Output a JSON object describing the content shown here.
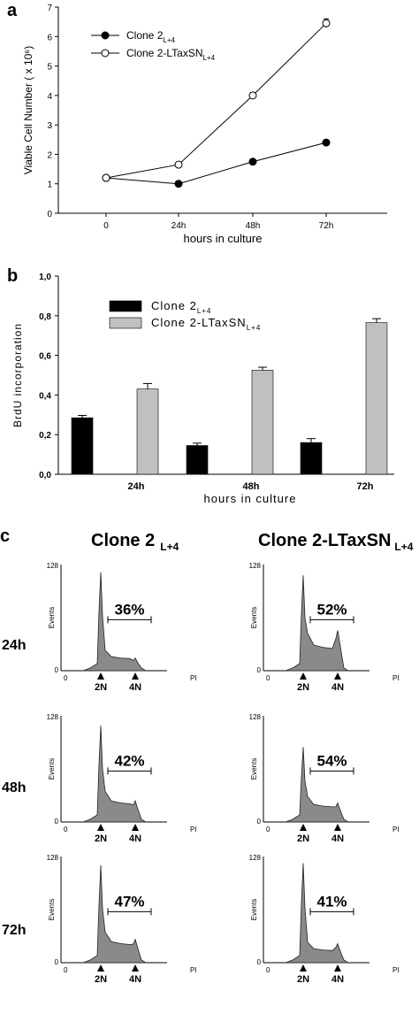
{
  "panel_a": {
    "letter": "a",
    "chart_data": {
      "type": "line",
      "x": [
        "0",
        "24h",
        "48h",
        "72h"
      ],
      "series": [
        {
          "name": "Clone 2",
          "subscript": "L+4",
          "values": [
            1.2,
            1.0,
            1.75,
            2.4
          ],
          "marker": "filled",
          "color": "#000000"
        },
        {
          "name": "Clone 2-LTaxSN",
          "subscript": "L+4",
          "values": [
            1.2,
            1.65,
            4.0,
            6.45
          ],
          "marker": "open",
          "color": "#000000"
        }
      ],
      "error_bars": [
        [
          0,
          0,
          0,
          0
        ],
        [
          0,
          0.05,
          0.1,
          0.15
        ]
      ],
      "xlabel": "hours in culture",
      "ylabel": "Viable Cell Number ( x 10⁶)",
      "ylim": [
        0,
        7
      ],
      "yticks": [
        "0",
        "1",
        "2",
        "3",
        "4",
        "5",
        "6",
        "7"
      ],
      "legend_position": "top-left",
      "grid": false
    }
  },
  "panel_b": {
    "letter": "b",
    "chart_data": {
      "type": "bar",
      "categories": [
        "24h",
        "48h",
        "72h"
      ],
      "series": [
        {
          "name": "Clone 2",
          "subscript": "L+4",
          "values": [
            0.285,
            0.145,
            0.16
          ],
          "errors": [
            0.012,
            0.012,
            0.02
          ],
          "color": "#000000"
        },
        {
          "name": "Clone 2-LTaxSN",
          "subscript": "L+4",
          "values": [
            0.43,
            0.525,
            0.765
          ],
          "errors": [
            0.028,
            0.015,
            0.02
          ],
          "color": "#c0c0c0"
        }
      ],
      "xlabel": "hours in culture",
      "ylabel": "BrdU incorporation",
      "ylim": [
        0,
        1.0
      ],
      "yticks": [
        "0,0",
        "0,2",
        "0,4",
        "0,6",
        "0,8",
        "1,0"
      ],
      "legend_position": "top-left",
      "grid": false
    }
  },
  "panel_c": {
    "letter": "c",
    "columns": [
      {
        "title": "Clone 2",
        "subscript": "L+4"
      },
      {
        "title": "Clone 2-LTaxSN",
        "subscript": "L+4"
      }
    ],
    "rows": [
      "24h",
      "48h",
      "72h"
    ],
    "ymax_label": "128",
    "yaxis_label": "Events",
    "zero_label": "0",
    "xaxis_label": "PI",
    "peak_labels": [
      "2N",
      "4N"
    ],
    "histograms": [
      [
        {
          "percent": "36%",
          "peak2n": 0.96,
          "plateau": 0.12,
          "peak4n": 0.12
        },
        {
          "percent": "52%",
          "peak2n": 0.93,
          "plateau": 0.22,
          "peak4n": 0.38
        }
      ],
      [
        {
          "percent": "42%",
          "peak2n": 0.94,
          "plateau": 0.18,
          "peak4n": 0.2
        },
        {
          "percent": "54%",
          "peak2n": 0.73,
          "plateau": 0.15,
          "peak4n": 0.18
        }
      ],
      [
        {
          "percent": "47%",
          "peak2n": 0.95,
          "plateau": 0.18,
          "peak4n": 0.22
        },
        {
          "percent": "41%",
          "peak2n": 0.97,
          "plateau": 0.12,
          "peak4n": 0.18
        }
      ]
    ]
  }
}
